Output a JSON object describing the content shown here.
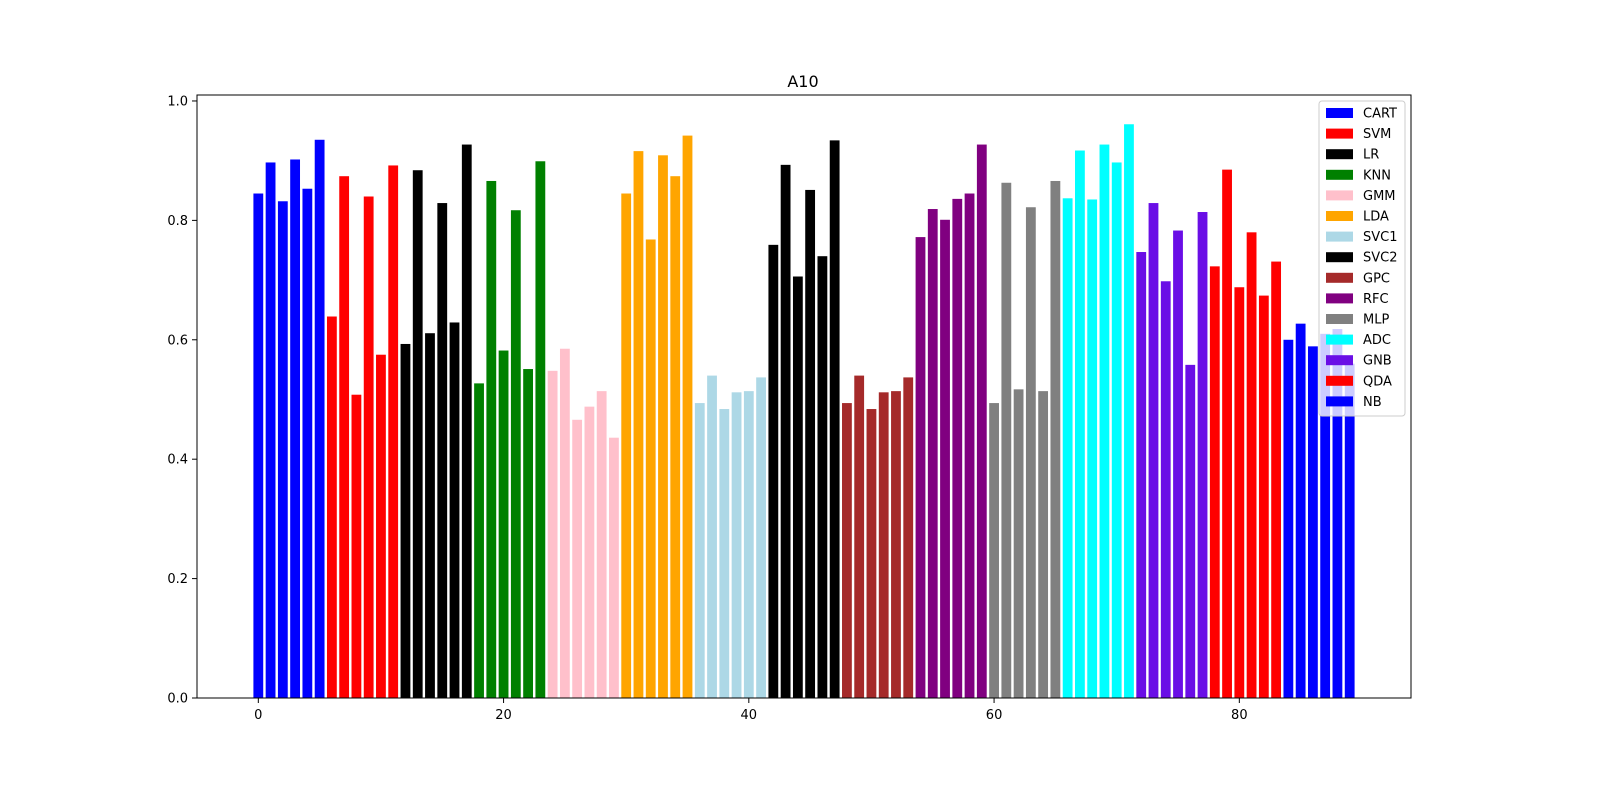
{
  "chart_data": {
    "type": "bar",
    "title": "A10",
    "xlabel": "",
    "ylabel": "",
    "xlim": [
      -5,
      94
    ],
    "ylim": [
      0,
      1.01
    ],
    "x_ticks": [
      0,
      20,
      40,
      60,
      80
    ],
    "y_ticks": [
      0.0,
      0.2,
      0.4,
      0.6,
      0.8,
      1.0
    ],
    "x_tick_labels": [
      "0",
      "20",
      "40",
      "60",
      "80"
    ],
    "y_tick_labels": [
      "0.0",
      "0.2",
      "0.4",
      "0.6",
      "0.8",
      "1.0"
    ],
    "grid": false,
    "legend_position": "top-right",
    "series": [
      {
        "name": "CART",
        "color": "#0000ff",
        "x": [
          0,
          1,
          2,
          3,
          4,
          5
        ],
        "values": [
          0.845,
          0.897,
          0.832,
          0.902,
          0.853,
          0.935
        ]
      },
      {
        "name": "SVM",
        "color": "#ff0000",
        "x": [
          6,
          7,
          8,
          9,
          10,
          11
        ],
        "values": [
          0.639,
          0.874,
          0.508,
          0.84,
          0.575,
          0.892
        ]
      },
      {
        "name": "LR",
        "color": "#000000",
        "x": [
          12,
          13,
          14,
          15,
          16,
          17
        ],
        "values": [
          0.593,
          0.884,
          0.611,
          0.829,
          0.629,
          0.927
        ]
      },
      {
        "name": "KNN",
        "color": "#008000",
        "x": [
          18,
          19,
          20,
          21,
          22,
          23
        ],
        "values": [
          0.527,
          0.866,
          0.582,
          0.817,
          0.551,
          0.899
        ]
      },
      {
        "name": "GMM",
        "color": "#ffc0cb",
        "x": [
          24,
          25,
          26,
          27,
          28,
          29
        ],
        "values": [
          0.548,
          0.585,
          0.466,
          0.488,
          0.514,
          0.436
        ]
      },
      {
        "name": "LDA",
        "color": "#ffa500",
        "x": [
          30,
          31,
          32,
          33,
          34,
          35
        ],
        "values": [
          0.845,
          0.916,
          0.768,
          0.909,
          0.874,
          0.942
        ]
      },
      {
        "name": "SVC1",
        "color": "#add8e6",
        "x": [
          36,
          37,
          38,
          39,
          40,
          41
        ],
        "values": [
          0.494,
          0.54,
          0.484,
          0.512,
          0.514,
          0.537
        ]
      },
      {
        "name": "SVC2",
        "color": "#000000",
        "x": [
          42,
          43,
          44,
          45,
          46,
          47
        ],
        "values": [
          0.759,
          0.893,
          0.706,
          0.851,
          0.74,
          0.934
        ]
      },
      {
        "name": "GPC",
        "color": "#a52a2a",
        "x": [
          48,
          49,
          50,
          51,
          52,
          53
        ],
        "values": [
          0.494,
          0.54,
          0.484,
          0.512,
          0.514,
          0.537
        ]
      },
      {
        "name": "RFC",
        "color": "#800080",
        "x": [
          54,
          55,
          56,
          57,
          58,
          59
        ],
        "values": [
          0.772,
          0.819,
          0.801,
          0.836,
          0.845,
          0.927
        ]
      },
      {
        "name": "MLP",
        "color": "#808080",
        "x": [
          60,
          61,
          62,
          63,
          64,
          65
        ],
        "values": [
          0.494,
          0.863,
          0.517,
          0.822,
          0.514,
          0.866
        ]
      },
      {
        "name": "ADC",
        "color": "#00ffff",
        "x": [
          66,
          67,
          68,
          69,
          70,
          71
        ],
        "values": [
          0.837,
          0.917,
          0.835,
          0.927,
          0.897,
          0.961
        ]
      },
      {
        "name": "GNB",
        "color": "#6a0ee6",
        "x": [
          72,
          73,
          74,
          75,
          76,
          77
        ],
        "values": [
          0.747,
          0.829,
          0.698,
          0.783,
          0.558,
          0.814
        ]
      },
      {
        "name": "QDA",
        "color": "#ff0000",
        "x": [
          78,
          79,
          80,
          81,
          82,
          83
        ],
        "values": [
          0.723,
          0.885,
          0.688,
          0.78,
          0.674,
          0.731
        ]
      },
      {
        "name": "NB",
        "color": "#0000ff",
        "x": [
          84,
          85,
          86,
          87,
          88,
          89
        ],
        "values": [
          0.6,
          0.627,
          0.589,
          0.61,
          0.618,
          0.56
        ]
      }
    ]
  }
}
